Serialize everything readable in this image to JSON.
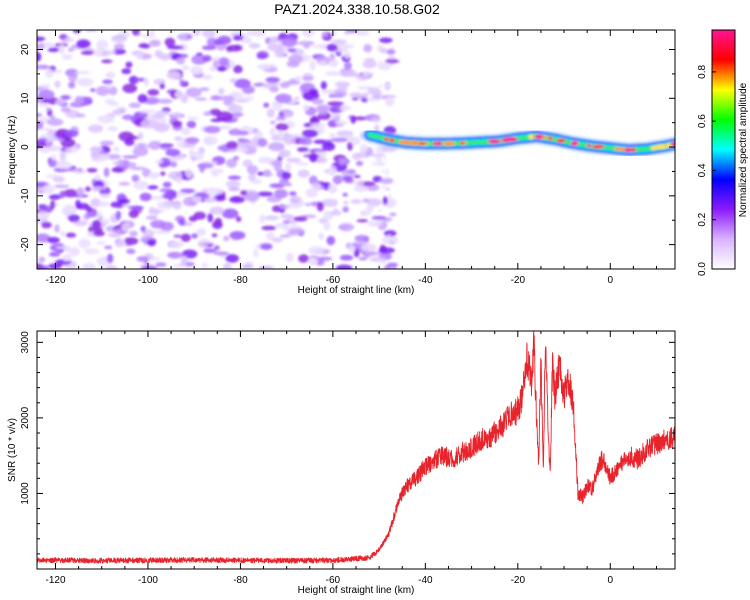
{
  "figure": {
    "title": "PAZ1.2024.338.10.58.G02"
  },
  "chart_data": [
    {
      "type": "heatmap",
      "xlabel": "Height of straight line (km)",
      "ylabel": "Frequency (Hz)",
      "xlim": [
        -124,
        14
      ],
      "ylim": [
        -25,
        24
      ],
      "xticks": [
        -120,
        -100,
        -80,
        -60,
        -40,
        -20,
        0
      ],
      "yticks": [
        -20,
        -10,
        0,
        10,
        20
      ],
      "grid": false,
      "noise_region_x": [
        -124,
        -50
      ],
      "ridge_x": [
        -52,
        -48,
        -44,
        -40,
        -36,
        -32,
        -28,
        -24,
        -20,
        -16,
        -12,
        -8,
        -4,
        0,
        4,
        8,
        12,
        14
      ],
      "ridge_y": [
        2.5,
        1.5,
        0.9,
        0.7,
        0.7,
        0.8,
        1.0,
        1.2,
        1.8,
        2.2,
        1.6,
        0.8,
        0.2,
        -0.2,
        -0.6,
        -0.4,
        0.2,
        0.6
      ],
      "colorbar": {
        "label": "Normalized spectral amplitude",
        "ticks": [
          0.0,
          0.2,
          0.4,
          0.6,
          0.8
        ],
        "range": [
          0,
          0.97
        ],
        "colors": [
          "#ffffff",
          "#d9b3ff",
          "#8c1aff",
          "#0000ff",
          "#00ffff",
          "#00ff00",
          "#ffff00",
          "#ff0000",
          "#ff1493"
        ]
      }
    },
    {
      "type": "line",
      "xlabel": "Height of straight line (km)",
      "ylabel": "SNR (10 * v/v)",
      "xlim": [
        -124,
        14
      ],
      "ylim": [
        0,
        3150
      ],
      "xticks": [
        -120,
        -100,
        -80,
        -60,
        -40,
        -20,
        0
      ],
      "yticks": [
        1000,
        2000,
        3000
      ],
      "grid": false,
      "color": "#e8232b",
      "x": [
        -124,
        -110,
        -90,
        -70,
        -60,
        -52,
        -50,
        -48,
        -47,
        -46,
        -45,
        -44,
        -42,
        -40,
        -38,
        -36,
        -34,
        -32,
        -30,
        -28,
        -26,
        -24,
        -22,
        -20,
        -19,
        -18,
        -17,
        -16.5,
        -16,
        -15.5,
        -15,
        -14.5,
        -14,
        -13.5,
        -13,
        -12.5,
        -12,
        -11,
        -10,
        -9,
        -8,
        -7.5,
        -7,
        -6,
        -5,
        -4,
        -3,
        -2,
        -1,
        0,
        2,
        4,
        6,
        8,
        10,
        12,
        14
      ],
      "y": [
        120,
        110,
        120,
        110,
        115,
        150,
        250,
        450,
        650,
        850,
        1000,
        1100,
        1200,
        1350,
        1450,
        1500,
        1450,
        1550,
        1600,
        1700,
        1750,
        1850,
        2000,
        2100,
        2300,
        2800,
        2500,
        3000,
        2100,
        1350,
        2800,
        1300,
        3100,
        2000,
        1200,
        2700,
        2300,
        2700,
        2300,
        2500,
        2200,
        1600,
        1000,
        950,
        1100,
        1050,
        1250,
        1450,
        1400,
        1200,
        1350,
        1500,
        1450,
        1600,
        1650,
        1700,
        1750
      ]
    }
  ]
}
